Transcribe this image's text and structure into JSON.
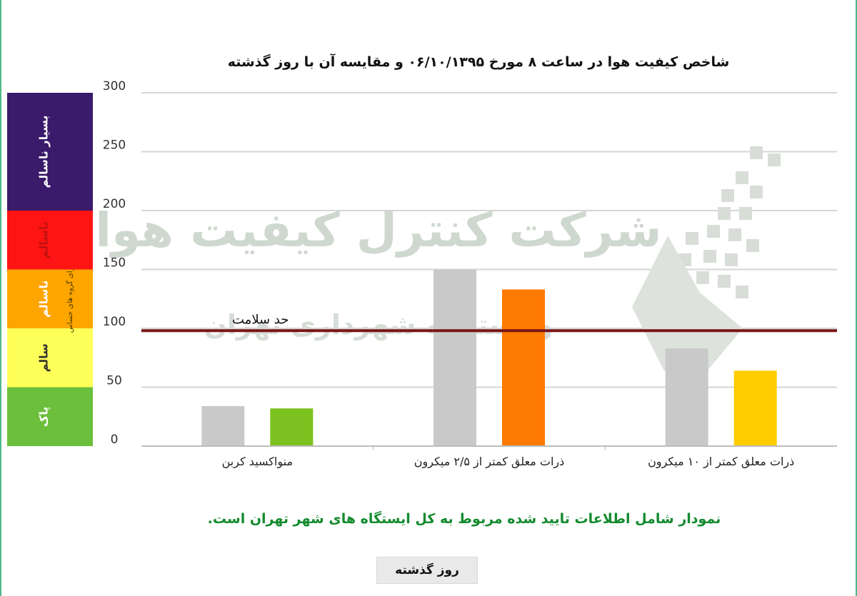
{
  "chart_data": {
    "type": "bar",
    "title": "شاخص کیفیت هوا در ساعت ۸ مورخ ۰۶/۱۰/۱۳۹۵ و مقایسه آن با روز گذشته",
    "categories": [
      "منواکسید کربن",
      "ذرات معلق کمتر از ۲/۵ میکرون",
      "ذرات معلق کمتر از ۱۰ میکرون"
    ],
    "series": [
      {
        "name": "روز گذشته",
        "values": [
          34,
          150,
          83
        ],
        "color": "#c9c9c9"
      },
      {
        "name": "",
        "values": [
          32,
          133,
          64
        ],
        "colors": [
          "#7cc11f",
          "#ff7a00",
          "#ffcc00"
        ]
      }
    ],
    "yticks": [
      0,
      50,
      100,
      150,
      200,
      250,
      300
    ],
    "ylim": [
      0,
      300
    ],
    "reference_line": {
      "value": 98,
      "label": "حد سلامت",
      "color": "#7a1515"
    },
    "aqi_bands": [
      {
        "from": 0,
        "to": 50,
        "label": "پاک",
        "color": "#6cbf3c"
      },
      {
        "from": 50,
        "to": 100,
        "label": "سالم",
        "color": "#ffff59"
      },
      {
        "from": 100,
        "to": 150,
        "label": "ناسالم",
        "sublabel": "برای گروه های حساس",
        "color": "#ffa500"
      },
      {
        "from": 150,
        "to": 200,
        "label": "ناسالم",
        "color": "#ff1414"
      },
      {
        "from": 200,
        "to": 300,
        "label": "بسیار ناسالم",
        "color": "#3a1a6b"
      }
    ],
    "grid": true
  },
  "watermark": {
    "line1": "شرکت کنترل کیفیت هوا",
    "line2": "وابسته به شهرداری تهران"
  },
  "footnote": "نمودار شامل اطلاعات تایید شده مربوط به کل ایستگاه های شهر تهران است.",
  "legend": {
    "label": "روز گذشته",
    "color": "#c9c9c9"
  }
}
